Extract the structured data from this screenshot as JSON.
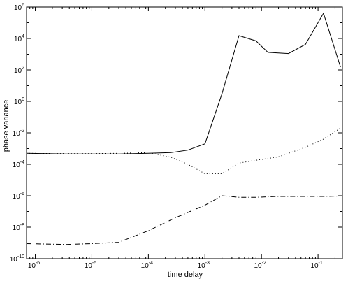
{
  "chart_data": {
    "type": "line",
    "title": "",
    "xlabel": "time delay",
    "ylabel": "phase variance",
    "x_scale": "log",
    "y_scale": "log",
    "xlim": [
      7e-07,
      0.27
    ],
    "ylim": [
      1e-10,
      1000000.0
    ],
    "grid": false,
    "legend": "none",
    "x_ticks": [
      {
        "base": "10",
        "exp": "-6",
        "value": 1e-06
      },
      {
        "base": "10",
        "exp": "-5",
        "value": 1e-05
      },
      {
        "base": "10",
        "exp": "-4",
        "value": 0.0001
      },
      {
        "base": "10",
        "exp": "-3",
        "value": 0.001
      },
      {
        "base": "10",
        "exp": "-2",
        "value": 0.01
      },
      {
        "base": "10",
        "exp": "-1",
        "value": 0.1
      }
    ],
    "y_ticks": [
      {
        "base": "10",
        "exp": "-10",
        "value": 1e-10
      },
      {
        "base": "10",
        "exp": "-8",
        "value": 1e-08
      },
      {
        "base": "10",
        "exp": "-6",
        "value": 1e-06
      },
      {
        "base": "10",
        "exp": "-4",
        "value": 0.0001
      },
      {
        "base": "10",
        "exp": "-2",
        "value": 0.01
      },
      {
        "base": "10",
        "exp": "0",
        "value": 1
      },
      {
        "base": "10",
        "exp": "2",
        "value": 100
      },
      {
        "base": "10",
        "exp": "4",
        "value": 10000
      },
      {
        "base": "10",
        "exp": "6",
        "value": 1000000
      }
    ],
    "series": [
      {
        "style": "solid",
        "color": "#000000",
        "x": [
          7e-07,
          3.5e-06,
          1e-05,
          3e-05,
          0.0001,
          0.00025,
          0.0005,
          0.001,
          0.002,
          0.004,
          0.008,
          0.013,
          0.03,
          0.06,
          0.125,
          0.25
        ],
        "y": [
          0.0005,
          0.00045,
          0.00045,
          0.00045,
          0.0005,
          0.00055,
          0.0008,
          0.002,
          3,
          15000,
          7000,
          1300,
          1100,
          4200,
          400000,
          150
        ]
      },
      {
        "style": "dotted",
        "color": "#000000",
        "x": [
          7e-07,
          3.5e-06,
          1e-05,
          3e-05,
          0.0001,
          0.00025,
          0.0005,
          0.001,
          0.002,
          0.004,
          0.008,
          0.02,
          0.06,
          0.125,
          0.25
        ],
        "y": [
          0.0005,
          0.00048,
          0.00048,
          0.0005,
          0.00055,
          0.00028,
          0.0001,
          2.5e-05,
          2.5e-05,
          0.00012,
          0.00018,
          0.0003,
          0.0012,
          0.004,
          0.02
        ]
      },
      {
        "style": "dashdot",
        "color": "#000000",
        "x": [
          7e-07,
          3.5e-06,
          1e-05,
          3e-05,
          0.0001,
          0.0003,
          0.001,
          0.002,
          0.004,
          0.008,
          0.02,
          0.06,
          0.125,
          0.25
        ],
        "y": [
          9e-10,
          8e-10,
          9e-10,
          1.1e-09,
          6e-09,
          4e-08,
          2.5e-07,
          1e-06,
          8e-07,
          8e-07,
          9e-07,
          9e-07,
          9e-07,
          9.5e-07
        ]
      }
    ]
  }
}
